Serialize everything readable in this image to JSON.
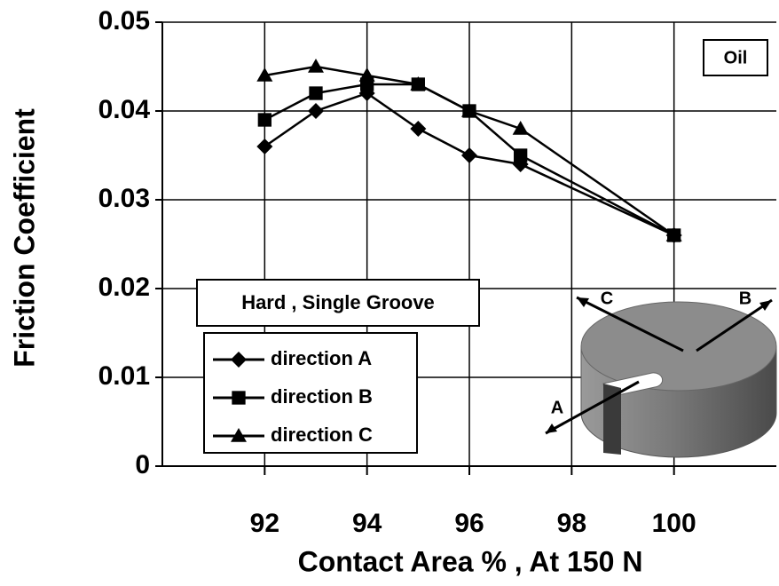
{
  "chart_data": {
    "type": "line",
    "y_label": "Friction Coefficient",
    "x_label": "Contact Area %  , At 150 N",
    "x": [
      92,
      93,
      94,
      95,
      96,
      97,
      100
    ],
    "series": [
      {
        "name": "direction A",
        "marker": "diamond",
        "color": "#000000",
        "values": [
          0.036,
          0.04,
          0.042,
          0.038,
          0.035,
          0.034,
          0.026
        ]
      },
      {
        "name": "direction B",
        "marker": "square",
        "color": "#000000",
        "values": [
          0.039,
          0.042,
          0.043,
          0.043,
          0.04,
          0.035,
          0.026
        ]
      },
      {
        "name": "direction C",
        "marker": "triangle",
        "color": "#000000",
        "values": [
          0.044,
          0.045,
          0.044,
          0.043,
          0.04,
          0.038,
          0.026
        ]
      }
    ],
    "xlim": [
      90,
      102
    ],
    "xticks": [
      92,
      94,
      96,
      98,
      100
    ],
    "ylim": [
      0,
      0.05
    ],
    "yticks": [
      0,
      0.01,
      0.02,
      0.03,
      0.04,
      0.05
    ],
    "grid": true,
    "annotations": [
      "Oil",
      "Hard , Single Groove",
      "A",
      "B",
      "C"
    ]
  }
}
